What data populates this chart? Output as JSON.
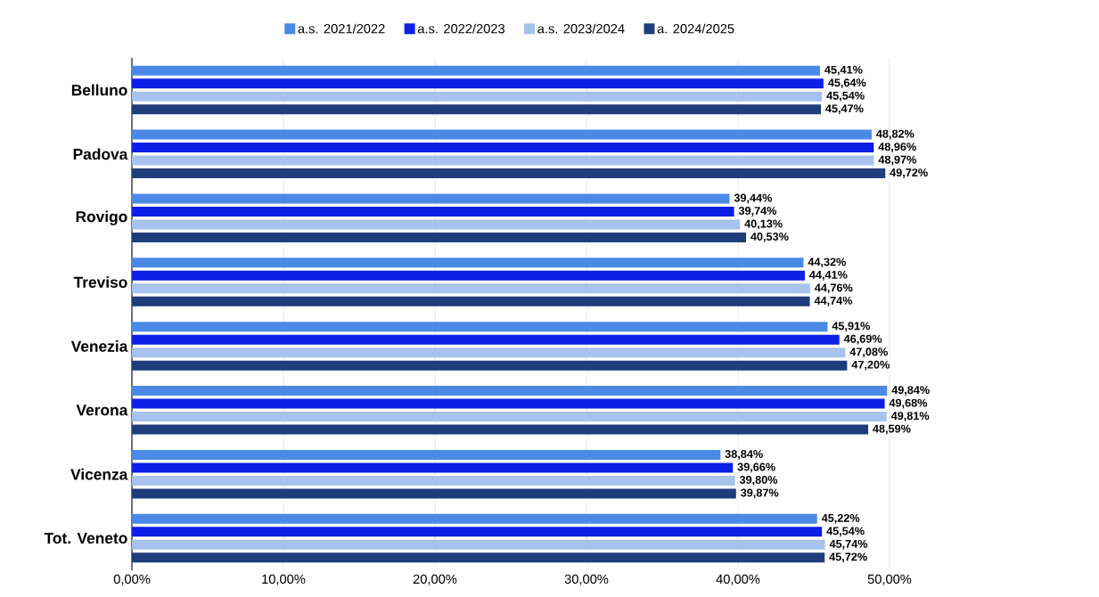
{
  "chart_data": {
    "type": "bar",
    "orientation": "horizontal",
    "categories": [
      "Belluno",
      "Padova",
      "Rovigo",
      "Treviso",
      "Venezia",
      "Verona",
      "Vicenza",
      "Tot. Veneto"
    ],
    "series": [
      {
        "name": "a.s. 2021/2022",
        "color": "#4a8ae6",
        "values": [
          45.41,
          48.82,
          39.44,
          44.32,
          45.91,
          49.84,
          38.84,
          45.22
        ],
        "value_labels": [
          "45,41%",
          "48,82%",
          "39,44%",
          "44,32%",
          "45,91%",
          "49,84%",
          "38,84%",
          "45,22%"
        ]
      },
      {
        "name": "a.s. 2022/2023",
        "color": "#0b1fe6",
        "values": [
          45.64,
          48.96,
          39.74,
          44.41,
          46.69,
          49.68,
          39.66,
          45.54
        ],
        "value_labels": [
          "45,64%",
          "48,96%",
          "39,74%",
          "44,41%",
          "46,69%",
          "49,68%",
          "39,66%",
          "45,54%"
        ]
      },
      {
        "name": "a.s. 2023/2024",
        "color": "#a8c2ee",
        "values": [
          45.54,
          48.97,
          40.13,
          44.76,
          47.08,
          49.81,
          39.8,
          45.74
        ],
        "value_labels": [
          "45,54%",
          "48,97%",
          "40,13%",
          "44,76%",
          "47,08%",
          "49,81%",
          "39,80%",
          "45,74%"
        ]
      },
      {
        "name": "a. 2024/2025",
        "color": "#1e3d7c",
        "values": [
          45.47,
          49.72,
          40.53,
          44.74,
          47.2,
          48.59,
          39.87,
          45.72
        ],
        "value_labels": [
          "45,47%",
          "49,72%",
          "40,53%",
          "44,74%",
          "47,20%",
          "48,59%",
          "39,87%",
          "45,72%"
        ]
      }
    ],
    "xlim": [
      0,
      50
    ],
    "xticks": [
      {
        "value": 0,
        "label": "0,00%"
      },
      {
        "value": 10,
        "label": "10,00%"
      },
      {
        "value": 20,
        "label": "20,00%"
      },
      {
        "value": 30,
        "label": "30,00%"
      },
      {
        "value": 40,
        "label": "40,00%"
      },
      {
        "value": 50,
        "label": "50,00%"
      }
    ],
    "grid": "x",
    "legend": "top"
  }
}
